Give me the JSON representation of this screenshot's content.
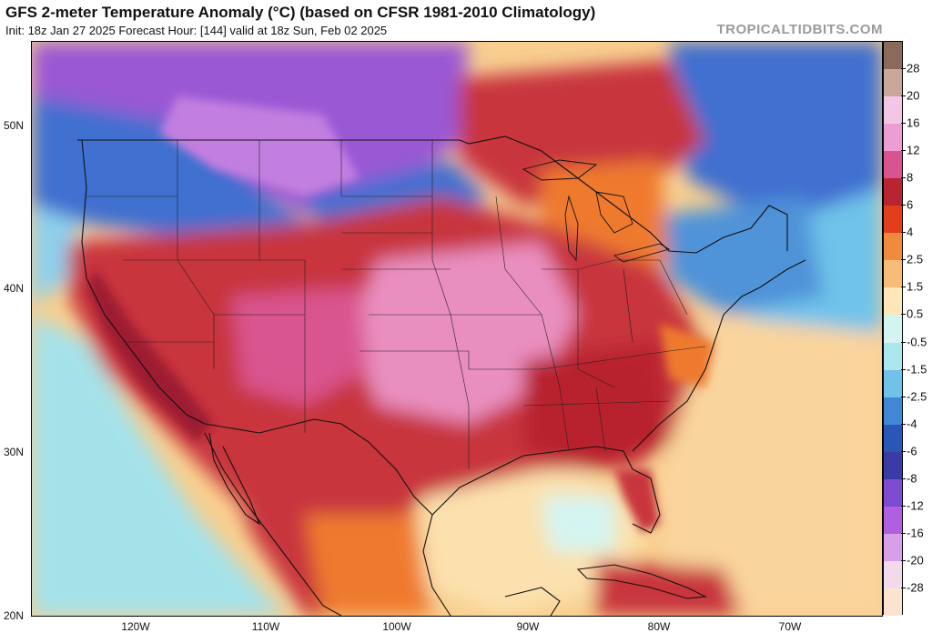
{
  "header": {
    "title": "GFS 2-meter Temperature Anomaly (°C) (based on CFSR 1981-2010 Climatology)",
    "subtitle": "Init: 18z Jan 27 2025   Forecast Hour: [144]   valid at 18z Sun, Feb 02 2025",
    "brand": "TROPICALTIDBITS.COM"
  },
  "axes": {
    "lat_labels": [
      "50N",
      "40N",
      "30N",
      "20N"
    ],
    "lon_labels": [
      "120W",
      "110W",
      "100W",
      "90W",
      "80W",
      "70W"
    ]
  },
  "colorbar": {
    "labels": [
      "28",
      "20",
      "16",
      "12",
      "8",
      "6",
      "4",
      "2.5",
      "1.5",
      "0.5",
      "-0.5",
      "-1.5",
      "-2.5",
      "-4",
      "-6",
      "-8",
      "-12",
      "-16",
      "-20",
      "-28"
    ],
    "colors": [
      "#8a6a5a",
      "#c9a79a",
      "#f3c6e6",
      "#ec9ed4",
      "#d9548f",
      "#b8242f",
      "#e33e1c",
      "#f08a3c",
      "#f6bc78",
      "#fde7b8",
      "#d3f5f1",
      "#a9e6ee",
      "#6fc3ea",
      "#3f88d6",
      "#2a56b8",
      "#3b3ba8",
      "#7c4bd0",
      "#b05fe0",
      "#d7a0e6",
      "#f2d9ec",
      "#fbe3d0"
    ]
  },
  "map": {
    "colors": {
      "ocean_gulf": "#fbe1ad",
      "ocean_atlantic_warm": "#f8cf8f",
      "ocean_pacific_cool": "#a4e2ea",
      "ocean_cold_blue": "#4f93d8",
      "hot_red": "#c8353c",
      "warm_pink": "#e98fbf",
      "deep_red": "#9e1f33",
      "orange": "#ef7a2e",
      "purple": "#9a58d4",
      "violet": "#c27fe0",
      "blue": "#3f6fd0",
      "light_blue": "#8ed0ee",
      "border": "#111111"
    }
  }
}
